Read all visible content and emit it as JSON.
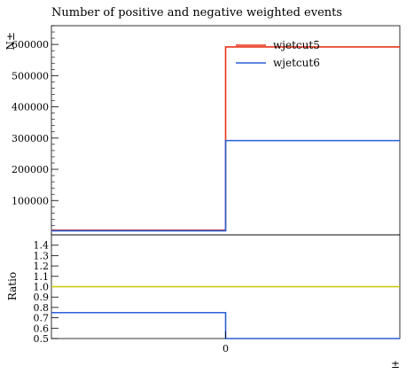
{
  "chart_data": [
    {
      "type": "line",
      "title": "Number of positive and negative weighted events",
      "ylabel": "N±",
      "xlabel": "",
      "x_edges": [
        -1,
        0,
        1
      ],
      "ylim": [
        -10000,
        660000
      ],
      "yticks": [
        100000,
        200000,
        300000,
        400000,
        500000,
        600000
      ],
      "ytick_labels": [
        "100000",
        "200000",
        "300000",
        "400000",
        "500000",
        "600000"
      ],
      "legend_position": "top-right",
      "grid": false,
      "series": [
        {
          "name": "wjetcut5",
          "color": "#e8331a",
          "values": [
            5000,
            592000
          ]
        },
        {
          "name": "wjetcut6",
          "color": "#2b5fd9",
          "values": [
            3000,
            292000
          ]
        }
      ]
    },
    {
      "type": "line",
      "title": "",
      "ylabel": "Ratio",
      "xlabel": "±",
      "x_edges": [
        -1,
        0,
        1
      ],
      "ylim": [
        0.5,
        1.5
      ],
      "yticks": [
        0.5,
        0.6,
        0.7,
        0.8,
        0.9,
        1.0,
        1.1,
        1.2,
        1.3,
        1.4
      ],
      "ytick_labels": [
        "0.5",
        "0.6",
        "0.7",
        "0.8",
        "0.9",
        "1.0",
        "1.1",
        "1.2",
        "1.3",
        "1.4"
      ],
      "xticks": [
        0
      ],
      "xtick_labels": [
        "0"
      ],
      "grid": false,
      "series": [
        {
          "name": "",
          "color": "#c8c800",
          "values": [
            1.0,
            1.0
          ]
        },
        {
          "name": "",
          "color": "#2b5fd9",
          "values": [
            0.75,
            0.5
          ]
        }
      ]
    }
  ]
}
